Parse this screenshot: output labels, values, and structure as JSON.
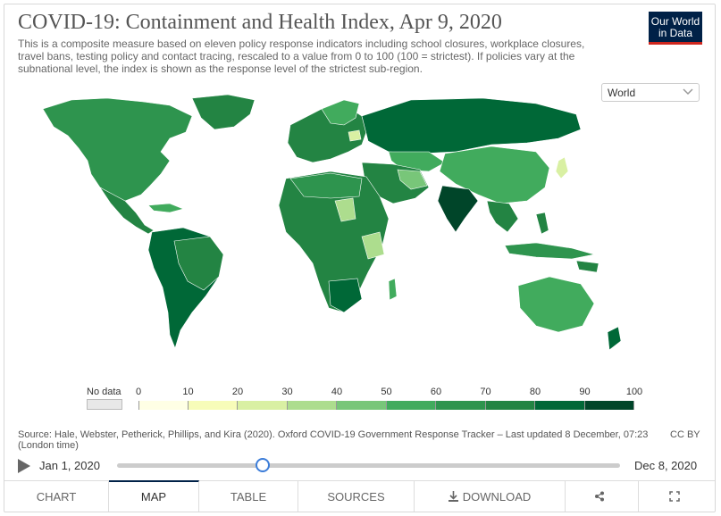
{
  "header": {
    "title": "COVID-19: Containment and Health Index, Apr 9, 2020",
    "subtitle": "This is a composite measure based on eleven policy response indicators including school closures, workplace closures, travel bans, testing policy and contact tracing, rescaled to a value from 0 to 100 (100 = strictest). If policies vary at the subnational level, the index is shown as the response level of the strictest sub-region.",
    "logo_line1": "Our World",
    "logo_line2": "in Data"
  },
  "region_select": {
    "value": "World"
  },
  "legend": {
    "nodata_label": "No data",
    "ticks": [
      "0",
      "10",
      "20",
      "30",
      "40",
      "50",
      "60",
      "70",
      "80",
      "90",
      "100"
    ],
    "colors": [
      "#ffffe5",
      "#f7fcb9",
      "#d9f0a3",
      "#addd8e",
      "#78c679",
      "#41ab5d",
      "#2e944e",
      "#238443",
      "#006837",
      "#004529"
    ],
    "nodata_color": "#e8e8e8"
  },
  "source": "Source: Hale, Webster, Petherick, Phillips, and Kira (2020). Oxford COVID-19 Government Response Tracker – Last updated 8 December, 07:23 (London time)",
  "license": "CC BY",
  "timeline": {
    "start": "Jan 1, 2020",
    "end": "Dec 8, 2020",
    "position": 0.29
  },
  "tabs": [
    {
      "label": "CHART",
      "icon": ""
    },
    {
      "label": "MAP",
      "icon": "",
      "active": true
    },
    {
      "label": "TABLE",
      "icon": ""
    },
    {
      "label": "SOURCES",
      "icon": ""
    },
    {
      "label": "DOWNLOAD",
      "icon": "download-icon"
    },
    {
      "label": "",
      "icon": "share-icon"
    },
    {
      "label": "",
      "icon": "expand-icon"
    }
  ]
}
